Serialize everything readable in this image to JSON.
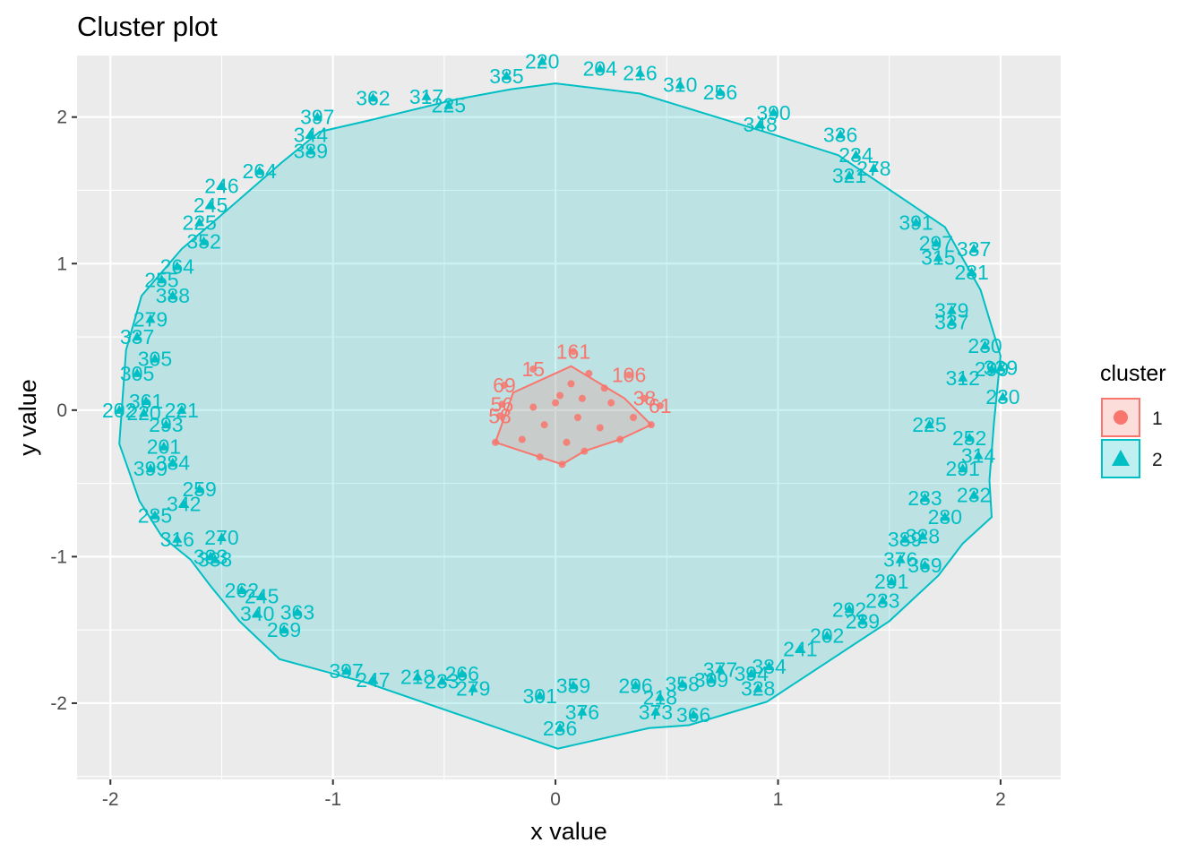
{
  "chart_data": {
    "type": "scatter",
    "title": "Cluster plot",
    "xlabel": "x value",
    "ylabel": "y value",
    "xlim": [
      -2.15,
      2.27
    ],
    "ylim": [
      -2.52,
      2.42
    ],
    "x_ticks": [
      -2,
      -1,
      0,
      1,
      2
    ],
    "y_ticks": [
      -2,
      -1,
      0,
      1,
      2
    ],
    "x_tick_labels": [
      "-2",
      "-1",
      "0",
      "1",
      "2"
    ],
    "y_tick_labels": [
      "-2",
      "-1",
      "0",
      "1",
      "2"
    ],
    "grid": true,
    "legend": {
      "title": "cluster",
      "position": "right",
      "entries": [
        {
          "label": "1",
          "color": "#F8766D",
          "shape": "circle"
        },
        {
          "label": "2",
          "color": "#00BFC4",
          "shape": "triangle"
        }
      ]
    },
    "series": [
      {
        "name": "1",
        "color": "#F8766D",
        "hull": [
          [
            -0.27,
            -0.22
          ],
          [
            -0.07,
            -0.32
          ],
          [
            0.03,
            -0.37
          ],
          [
            0.13,
            -0.28
          ],
          [
            0.29,
            -0.2
          ],
          [
            0.43,
            -0.1
          ],
          [
            0.31,
            0.08
          ],
          [
            0.07,
            0.3
          ],
          [
            -0.19,
            0.12
          ]
        ],
        "points": [
          {
            "x": -0.27,
            "y": -0.22,
            "label": ""
          },
          {
            "x": -0.07,
            "y": -0.32,
            "label": ""
          },
          {
            "x": 0.03,
            "y": -0.37,
            "label": ""
          },
          {
            "x": 0.13,
            "y": -0.28,
            "label": ""
          },
          {
            "x": 0.29,
            "y": -0.2,
            "label": ""
          },
          {
            "x": 0.43,
            "y": -0.1,
            "label": ""
          },
          {
            "x": 0.02,
            "y": 0.1,
            "label": ""
          },
          {
            "x": 0.07,
            "y": 0.18,
            "label": ""
          },
          {
            "x": 0.12,
            "y": 0.08,
            "label": ""
          },
          {
            "x": -0.05,
            "y": -0.1,
            "label": ""
          },
          {
            "x": 0.2,
            "y": -0.12,
            "label": ""
          },
          {
            "x": 0.25,
            "y": 0.05,
            "label": ""
          },
          {
            "x": -0.1,
            "y": 0.02,
            "label": ""
          },
          {
            "x": 0.05,
            "y": -0.22,
            "label": ""
          },
          {
            "x": 0.15,
            "y": 0.25,
            "label": ""
          },
          {
            "x": -0.15,
            "y": -0.2,
            "label": ""
          },
          {
            "x": 0.35,
            "y": -0.05,
            "label": ""
          },
          {
            "x": 0.1,
            "y": -0.05,
            "label": ""
          },
          {
            "x": 0.0,
            "y": 0.05,
            "label": ""
          },
          {
            "x": 0.22,
            "y": 0.15,
            "label": ""
          },
          {
            "x": 0.08,
            "y": 0.4,
            "label": "161"
          },
          {
            "x": 0.33,
            "y": 0.24,
            "label": "106"
          },
          {
            "x": -0.23,
            "y": 0.17,
            "label": "69"
          },
          {
            "x": 0.4,
            "y": 0.08,
            "label": "38"
          },
          {
            "x": 0.47,
            "y": 0.03,
            "label": "61"
          },
          {
            "x": -0.24,
            "y": 0.04,
            "label": "56"
          },
          {
            "x": -0.25,
            "y": -0.04,
            "label": "58"
          },
          {
            "x": -0.1,
            "y": 0.28,
            "label": "15"
          }
        ]
      },
      {
        "name": "2",
        "color": "#00BFC4",
        "hull": [
          [
            0.0,
            2.23
          ],
          [
            0.38,
            2.16
          ],
          [
            0.96,
            1.89
          ],
          [
            1.27,
            1.74
          ],
          [
            1.75,
            1.25
          ],
          [
            1.91,
            0.82
          ],
          [
            2.0,
            0.37
          ],
          [
            1.97,
            -0.09
          ],
          [
            1.95,
            -0.48
          ],
          [
            1.96,
            -0.73
          ],
          [
            1.83,
            -0.91
          ],
          [
            1.72,
            -1.13
          ],
          [
            1.5,
            -1.44
          ],
          [
            0.95,
            -1.99
          ],
          [
            0.6,
            -2.15
          ],
          [
            0.42,
            -2.17
          ],
          [
            0.01,
            -2.31
          ],
          [
            -0.85,
            -1.86
          ],
          [
            -1.24,
            -1.7
          ],
          [
            -1.42,
            -1.44
          ],
          [
            -1.55,
            -1.2
          ],
          [
            -1.64,
            -1.02
          ],
          [
            -1.77,
            -0.86
          ],
          [
            -1.87,
            -0.62
          ],
          [
            -1.96,
            -0.23
          ],
          [
            -1.93,
            0.41
          ],
          [
            -1.86,
            0.78
          ],
          [
            -1.68,
            1.1
          ],
          [
            -1.51,
            1.32
          ],
          [
            -1.23,
            1.69
          ],
          [
            -1.06,
            1.9
          ],
          [
            -0.83,
            1.98
          ],
          [
            -0.45,
            2.12
          ],
          [
            -0.2,
            2.19
          ]
        ],
        "points": [
          {
            "x": -0.06,
            "y": 2.38,
            "label": "220"
          },
          {
            "x": 0.2,
            "y": 2.33,
            "label": "204"
          },
          {
            "x": 0.38,
            "y": 2.3,
            "label": "216"
          },
          {
            "x": -0.22,
            "y": 2.28,
            "label": "385"
          },
          {
            "x": 0.56,
            "y": 2.22,
            "label": "310"
          },
          {
            "x": 0.74,
            "y": 2.17,
            "label": "256"
          },
          {
            "x": 0.98,
            "y": 2.03,
            "label": "390"
          },
          {
            "x": 0.92,
            "y": 1.95,
            "label": "348"
          },
          {
            "x": -1.07,
            "y": 2.0,
            "label": "397"
          },
          {
            "x": -0.82,
            "y": 2.13,
            "label": "362"
          },
          {
            "x": -0.58,
            "y": 2.14,
            "label": "317"
          },
          {
            "x": -0.48,
            "y": 2.08,
            "label": "225"
          },
          {
            "x": 1.28,
            "y": 1.88,
            "label": "336"
          },
          {
            "x": 1.35,
            "y": 1.74,
            "label": "234"
          },
          {
            "x": 1.43,
            "y": 1.65,
            "label": "278"
          },
          {
            "x": 1.32,
            "y": 1.6,
            "label": "321"
          },
          {
            "x": -1.1,
            "y": 1.88,
            "label": "344"
          },
          {
            "x": -1.1,
            "y": 1.77,
            "label": "389"
          },
          {
            "x": -1.33,
            "y": 1.63,
            "label": "264"
          },
          {
            "x": -1.5,
            "y": 1.53,
            "label": "246"
          },
          {
            "x": -1.55,
            "y": 1.4,
            "label": "245"
          },
          {
            "x": -1.6,
            "y": 1.28,
            "label": "225"
          },
          {
            "x": -1.58,
            "y": 1.15,
            "label": "352"
          },
          {
            "x": -1.7,
            "y": 0.98,
            "label": "264"
          },
          {
            "x": 1.62,
            "y": 1.28,
            "label": "391"
          },
          {
            "x": 1.71,
            "y": 1.14,
            "label": "297"
          },
          {
            "x": 1.88,
            "y": 1.1,
            "label": "337"
          },
          {
            "x": 1.72,
            "y": 1.04,
            "label": "315"
          },
          {
            "x": 1.87,
            "y": 0.94,
            "label": "281"
          },
          {
            "x": 1.78,
            "y": 0.68,
            "label": "379"
          },
          {
            "x": 1.78,
            "y": 0.6,
            "label": "337"
          },
          {
            "x": 1.93,
            "y": 0.44,
            "label": "230"
          },
          {
            "x": 1.96,
            "y": 0.28,
            "label": "299"
          },
          {
            "x": 2.0,
            "y": 0.29,
            "label": "339"
          },
          {
            "x": 1.83,
            "y": 0.22,
            "label": "312"
          },
          {
            "x": 2.01,
            "y": 0.09,
            "label": "230"
          },
          {
            "x": 1.68,
            "y": -0.1,
            "label": "225"
          },
          {
            "x": 1.86,
            "y": -0.19,
            "label": "252"
          },
          {
            "x": 1.9,
            "y": -0.31,
            "label": "314"
          },
          {
            "x": 1.83,
            "y": -0.4,
            "label": "291"
          },
          {
            "x": 1.88,
            "y": -0.58,
            "label": "232"
          },
          {
            "x": 1.66,
            "y": -0.6,
            "label": "283"
          },
          {
            "x": 1.75,
            "y": -0.73,
            "label": "280"
          },
          {
            "x": 1.65,
            "y": -0.86,
            "label": "328"
          },
          {
            "x": 1.57,
            "y": -0.88,
            "label": "389"
          },
          {
            "x": 1.55,
            "y": -1.02,
            "label": "376"
          },
          {
            "x": 1.66,
            "y": -1.06,
            "label": "369"
          },
          {
            "x": 1.51,
            "y": -1.17,
            "label": "291"
          },
          {
            "x": 1.47,
            "y": -1.3,
            "label": "233"
          },
          {
            "x": 1.32,
            "y": -1.36,
            "label": "292"
          },
          {
            "x": 1.38,
            "y": -1.44,
            "label": "289"
          },
          {
            "x": 1.22,
            "y": -1.54,
            "label": "202"
          },
          {
            "x": 1.1,
            "y": -1.63,
            "label": "241"
          },
          {
            "x": 0.96,
            "y": -1.75,
            "label": "384"
          },
          {
            "x": 0.88,
            "y": -1.8,
            "label": "394"
          },
          {
            "x": 0.74,
            "y": -1.77,
            "label": "377"
          },
          {
            "x": 0.7,
            "y": -1.84,
            "label": "309"
          },
          {
            "x": 0.91,
            "y": -1.9,
            "label": "328"
          },
          {
            "x": 0.57,
            "y": -1.87,
            "label": "358"
          },
          {
            "x": 0.36,
            "y": -1.88,
            "label": "296"
          },
          {
            "x": 0.47,
            "y": -1.96,
            "label": "218"
          },
          {
            "x": 0.62,
            "y": -2.08,
            "label": "366"
          },
          {
            "x": 0.45,
            "y": -2.06,
            "label": "373"
          },
          {
            "x": 0.08,
            "y": -1.88,
            "label": "359"
          },
          {
            "x": -0.07,
            "y": -1.95,
            "label": "301"
          },
          {
            "x": 0.12,
            "y": -2.06,
            "label": "376"
          },
          {
            "x": 0.02,
            "y": -2.17,
            "label": "236"
          },
          {
            "x": -0.42,
            "y": -1.8,
            "label": "266"
          },
          {
            "x": -0.37,
            "y": -1.9,
            "label": "279"
          },
          {
            "x": -0.51,
            "y": -1.85,
            "label": "233"
          },
          {
            "x": -0.94,
            "y": -1.78,
            "label": "397"
          },
          {
            "x": -0.82,
            "y": -1.84,
            "label": "247"
          },
          {
            "x": -0.62,
            "y": -1.82,
            "label": "218"
          },
          {
            "x": -1.22,
            "y": -1.5,
            "label": "269"
          },
          {
            "x": -1.16,
            "y": -1.38,
            "label": "363"
          },
          {
            "x": -1.32,
            "y": -1.27,
            "label": "245"
          },
          {
            "x": -1.41,
            "y": -1.23,
            "label": "262"
          },
          {
            "x": -1.34,
            "y": -1.39,
            "label": "340"
          },
          {
            "x": -1.53,
            "y": -1.02,
            "label": "338"
          },
          {
            "x": -1.5,
            "y": -0.87,
            "label": "270"
          },
          {
            "x": -1.55,
            "y": -1.0,
            "label": "333"
          },
          {
            "x": -1.7,
            "y": -0.88,
            "label": "316"
          },
          {
            "x": -1.6,
            "y": -0.54,
            "label": "259"
          },
          {
            "x": -1.67,
            "y": -0.64,
            "label": "342"
          },
          {
            "x": -1.8,
            "y": -0.72,
            "label": "285"
          },
          {
            "x": -1.82,
            "y": -0.4,
            "label": "399"
          },
          {
            "x": -1.72,
            "y": -0.36,
            "label": "384"
          },
          {
            "x": -1.76,
            "y": -0.25,
            "label": "201"
          },
          {
            "x": -1.75,
            "y": -0.1,
            "label": "293"
          },
          {
            "x": -1.68,
            "y": 0.0,
            "label": "221"
          },
          {
            "x": -1.85,
            "y": -0.02,
            "label": "220"
          },
          {
            "x": -1.96,
            "y": 0.0,
            "label": "202"
          },
          {
            "x": -1.84,
            "y": 0.06,
            "label": "361"
          },
          {
            "x": -1.88,
            "y": 0.25,
            "label": "305"
          },
          {
            "x": -1.8,
            "y": 0.35,
            "label": "305"
          },
          {
            "x": -1.88,
            "y": 0.5,
            "label": "337"
          },
          {
            "x": -1.82,
            "y": 0.62,
            "label": "279"
          },
          {
            "x": -1.72,
            "y": 0.78,
            "label": "388"
          },
          {
            "x": -1.77,
            "y": 0.89,
            "label": "255"
          }
        ]
      }
    ]
  }
}
